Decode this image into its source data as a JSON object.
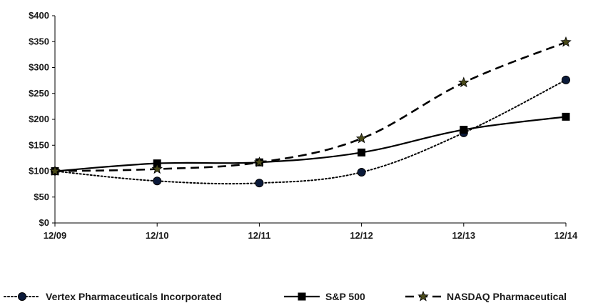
{
  "chart_data": {
    "type": "line",
    "categories": [
      "12/09",
      "12/10",
      "12/11",
      "12/12",
      "12/13",
      "12/14"
    ],
    "y_ticks": [
      "$0",
      "$50",
      "$100",
      "$150",
      "$200",
      "$250",
      "$300",
      "$350",
      "$400"
    ],
    "ylim": [
      0,
      400
    ],
    "grid": false,
    "legend_position": "bottom",
    "series": [
      {
        "name": "Vertex Pharmaceuticals Incorporated",
        "values": [
          100,
          81,
          77,
          98,
          174,
          276
        ],
        "marker": "circle",
        "line_style": "dotted",
        "color": "#000000",
        "marker_color": "#0b1a3a"
      },
      {
        "name": "S&P 500",
        "values": [
          100,
          115,
          117,
          136,
          180,
          205
        ],
        "marker": "square",
        "line_style": "solid",
        "color": "#000000",
        "marker_color": "#000000"
      },
      {
        "name": "NASDAQ Pharmaceutical",
        "values": [
          100,
          104,
          117,
          163,
          271,
          349
        ],
        "marker": "star",
        "line_style": "dashed",
        "color": "#000000",
        "marker_color": "#4a4a1a"
      }
    ]
  }
}
